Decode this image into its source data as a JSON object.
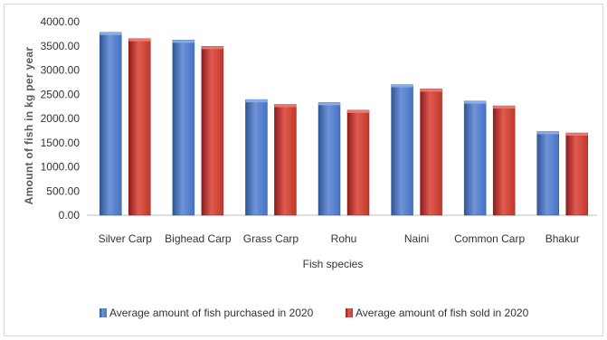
{
  "chart_data": {
    "type": "bar",
    "title": "",
    "xlabel": "Fish species",
    "ylabel": "Amount of fish in kg per year",
    "categories": [
      "Silver Carp",
      "Bighead Carp",
      "Grass Carp",
      "Rohu",
      "Naini",
      "Common Carp",
      "Bhakur"
    ],
    "series": [
      {
        "name": "Average amount of fish purchased in 2020",
        "color": "#4472c4",
        "values": [
          3780,
          3620,
          2390,
          2330,
          2700,
          2360,
          1730
        ]
      },
      {
        "name": "Average amount of fish sold in 2020",
        "color": "#c0392b",
        "values": [
          3650,
          3490,
          2290,
          2170,
          2610,
          2260,
          1700
        ]
      }
    ],
    "ylim": [
      0,
      4000
    ],
    "yticks": [
      "0.00",
      "500.00",
      "1000.00",
      "1500.00",
      "2000.00",
      "2500.00",
      "3000.00",
      "3500.00",
      "4000.00"
    ],
    "grid": false,
    "legend_position": "bottom"
  }
}
